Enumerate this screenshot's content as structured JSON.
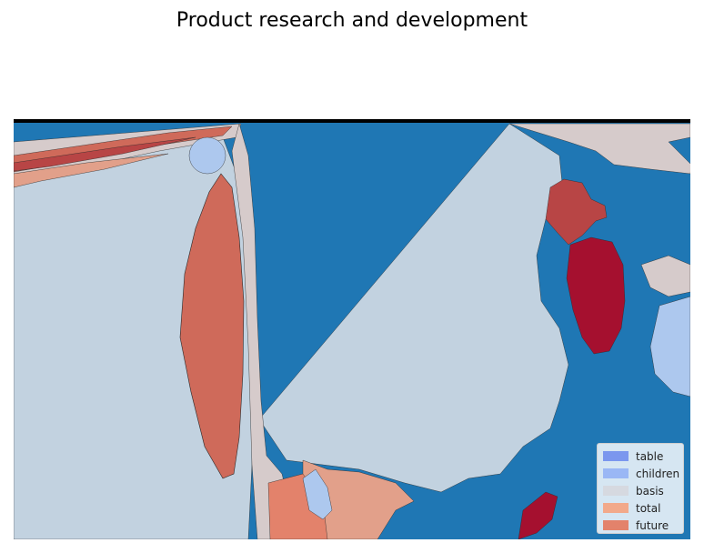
{
  "title": "Product research and development",
  "legend": [
    {
      "label": "table",
      "color": "#7b97ee"
    },
    {
      "label": "children",
      "color": "#9ab7f5"
    },
    {
      "label": "basis",
      "color": "#d6d9e0"
    },
    {
      "label": "total",
      "color": "#f2a98a"
    },
    {
      "label": "future",
      "color": "#e3826b"
    }
  ],
  "colors": {
    "water": "#1f77b4",
    "land_basis": "#c2d2e0",
    "land_pale": "#d6cbcb",
    "land_children": "#adc8ee",
    "land_total": "#e2a08a",
    "land_future": "#cf6a5a",
    "land_dark": "#a5102f",
    "land_mid": "#b84545"
  }
}
